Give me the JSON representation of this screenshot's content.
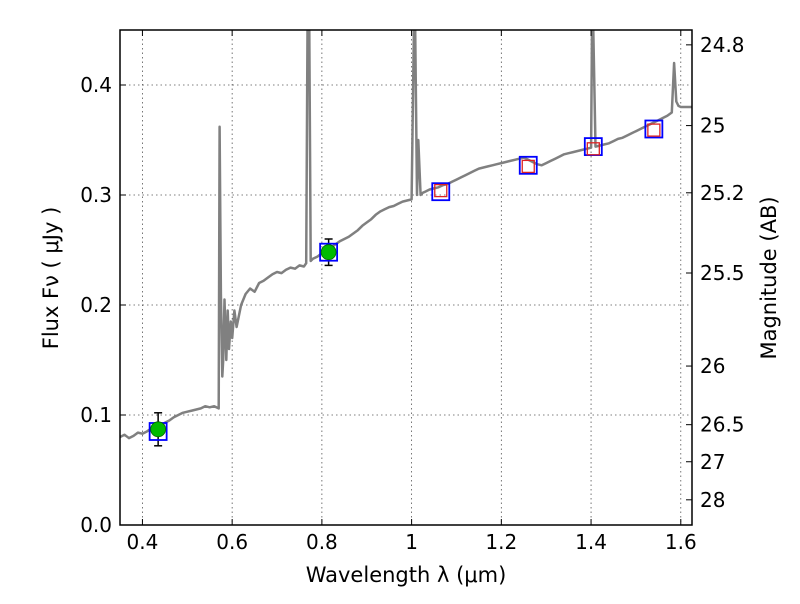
{
  "chart_data": {
    "type": "line",
    "title": "",
    "xlabel": "Wavelength  λ (μm)",
    "ylabel": "Flux  Fν  ( μJy )",
    "y2label": "Magnitude (AB)",
    "xlim": [
      0.35,
      1.625
    ],
    "ylim": [
      0.0,
      0.45
    ],
    "grid": true,
    "grid_style": "dotted",
    "x_ticks": [
      0.4,
      0.6,
      0.8,
      1.0,
      1.2,
      1.4,
      1.6
    ],
    "x_tick_labels": [
      "0.4",
      "0.6",
      "0.8",
      "1",
      "1.2",
      "1.4",
      "1.6"
    ],
    "y_ticks": [
      0.0,
      0.1,
      0.2,
      0.3,
      0.4
    ],
    "y_tick_labels": [
      "0.0",
      "0.1",
      "0.2",
      "0.3",
      "0.4"
    ],
    "y2_ticks": [
      {
        "label": "24.8",
        "flux": 0.4365
      },
      {
        "label": "25",
        "flux": 0.3631
      },
      {
        "label": "25.2",
        "flux": 0.302
      },
      {
        "label": "25.5",
        "flux": 0.2291
      },
      {
        "label": "26",
        "flux": 0.1445
      },
      {
        "label": "26.5",
        "flux": 0.0912
      },
      {
        "label": "27",
        "flux": 0.0575
      },
      {
        "label": "28",
        "flux": 0.0229
      }
    ],
    "colors": {
      "spectrum": "#808080",
      "photometry_marker": "#00bb00",
      "model_box": "#0000ff",
      "observed_square": "#dd2222",
      "error_bar": "#000000"
    },
    "series": [
      {
        "kind": "spectrum",
        "x": [
          0.35,
          0.36,
          0.37,
          0.38,
          0.39,
          0.4,
          0.41,
          0.42,
          0.43,
          0.44,
          0.45,
          0.46,
          0.47,
          0.48,
          0.49,
          0.5,
          0.51,
          0.52,
          0.53,
          0.54,
          0.55,
          0.56,
          0.57,
          0.572,
          0.575,
          0.578,
          0.58,
          0.583,
          0.587,
          0.59,
          0.593,
          0.597,
          0.6,
          0.605,
          0.61,
          0.62,
          0.63,
          0.64,
          0.65,
          0.66,
          0.67,
          0.68,
          0.69,
          0.7,
          0.71,
          0.72,
          0.73,
          0.74,
          0.75,
          0.76,
          0.765,
          0.768,
          0.772,
          0.775,
          0.78,
          0.79,
          0.8,
          0.81,
          0.82,
          0.83,
          0.84,
          0.85,
          0.86,
          0.87,
          0.88,
          0.89,
          0.9,
          0.91,
          0.92,
          0.93,
          0.94,
          0.95,
          0.96,
          0.97,
          0.98,
          0.99,
          1.0,
          1.005,
          1.008,
          1.012,
          1.015,
          1.02,
          1.025,
          1.03,
          1.04,
          1.05,
          1.06,
          1.07,
          1.08,
          1.09,
          1.1,
          1.11,
          1.12,
          1.13,
          1.14,
          1.15,
          1.16,
          1.17,
          1.18,
          1.19,
          1.2,
          1.21,
          1.22,
          1.23,
          1.24,
          1.25,
          1.26,
          1.27,
          1.28,
          1.29,
          1.3,
          1.31,
          1.32,
          1.33,
          1.34,
          1.35,
          1.36,
          1.37,
          1.38,
          1.39,
          1.4,
          1.402,
          1.405,
          1.41,
          1.42,
          1.43,
          1.44,
          1.45,
          1.46,
          1.47,
          1.48,
          1.49,
          1.5,
          1.51,
          1.52,
          1.53,
          1.54,
          1.55,
          1.56,
          1.57,
          1.58,
          1.585,
          1.59,
          1.595,
          1.6,
          1.61,
          1.625
        ],
        "y": [
          0.08,
          0.082,
          0.079,
          0.081,
          0.084,
          0.083,
          0.085,
          0.088,
          0.087,
          0.09,
          0.093,
          0.095,
          0.098,
          0.1,
          0.102,
          0.103,
          0.104,
          0.105,
          0.106,
          0.108,
          0.107,
          0.108,
          0.106,
          0.362,
          0.21,
          0.135,
          0.15,
          0.205,
          0.15,
          0.195,
          0.16,
          0.185,
          0.17,
          0.195,
          0.18,
          0.2,
          0.21,
          0.215,
          0.212,
          0.22,
          0.222,
          0.225,
          0.228,
          0.23,
          0.229,
          0.232,
          0.234,
          0.233,
          0.236,
          0.235,
          0.238,
          0.45,
          0.45,
          0.24,
          0.242,
          0.244,
          0.247,
          0.249,
          0.252,
          0.255,
          0.258,
          0.26,
          0.262,
          0.265,
          0.268,
          0.272,
          0.275,
          0.278,
          0.282,
          0.285,
          0.287,
          0.289,
          0.29,
          0.292,
          0.294,
          0.295,
          0.296,
          0.45,
          0.45,
          0.3,
          0.35,
          0.3,
          0.302,
          0.303,
          0.305,
          0.306,
          0.307,
          0.309,
          0.31,
          0.312,
          0.314,
          0.316,
          0.318,
          0.32,
          0.322,
          0.324,
          0.325,
          0.326,
          0.327,
          0.328,
          0.329,
          0.33,
          0.331,
          0.332,
          0.333,
          0.334,
          0.332,
          0.33,
          0.328,
          0.327,
          0.329,
          0.331,
          0.333,
          0.335,
          0.337,
          0.338,
          0.339,
          0.34,
          0.341,
          0.342,
          0.343,
          0.45,
          0.45,
          0.344,
          0.345,
          0.346,
          0.347,
          0.349,
          0.351,
          0.352,
          0.354,
          0.356,
          0.358,
          0.36,
          0.362,
          0.364,
          0.366,
          0.368,
          0.37,
          0.372,
          0.375,
          0.42,
          0.385,
          0.381,
          0.38,
          0.38,
          0.38
        ]
      }
    ],
    "photometry": [
      {
        "x": 0.435,
        "y": 0.087,
        "err": 0.015,
        "marker": "filled-circle"
      },
      {
        "x": 0.815,
        "y": 0.248,
        "err": 0.012,
        "marker": "filled-circle"
      }
    ],
    "model_points": [
      {
        "x": 0.435,
        "y": 0.085
      },
      {
        "x": 0.815,
        "y": 0.248
      },
      {
        "x": 1.065,
        "y": 0.303
      },
      {
        "x": 1.26,
        "y": 0.327
      },
      {
        "x": 1.405,
        "y": 0.344
      },
      {
        "x": 1.54,
        "y": 0.36
      }
    ],
    "observed_points": [
      {
        "x": 1.065,
        "y": 0.304
      },
      {
        "x": 1.26,
        "y": 0.326
      },
      {
        "x": 1.405,
        "y": 0.342
      },
      {
        "x": 1.54,
        "y": 0.359
      }
    ]
  }
}
